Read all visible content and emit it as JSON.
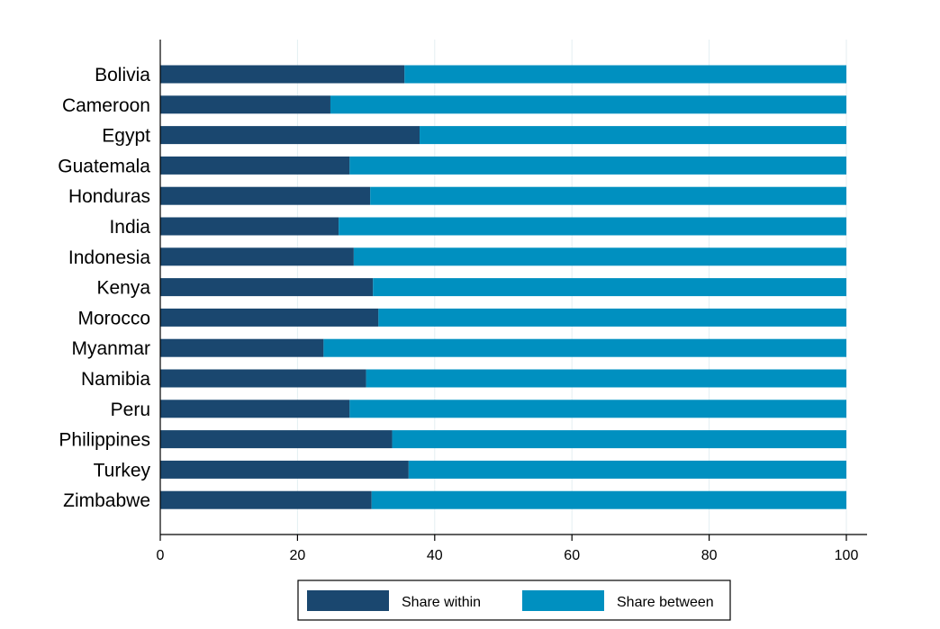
{
  "chart_data": {
    "type": "bar",
    "orientation": "horizontal",
    "stacked": true,
    "categories": [
      "Bolivia",
      "Cameroon",
      "Egypt",
      "Guatemala",
      "Honduras",
      "India",
      "Indonesia",
      "Kenya",
      "Morocco",
      "Myanmar",
      "Namibia",
      "Peru",
      "Philippines",
      "Turkey",
      "Zimbabwe"
    ],
    "series": [
      {
        "name": "Share within",
        "color": "#1a476f",
        "values": [
          35.6,
          24.8,
          37.8,
          27.6,
          30.6,
          26.0,
          28.2,
          31.0,
          31.8,
          23.8,
          30.0,
          27.6,
          33.8,
          36.2,
          30.8
        ]
      },
      {
        "name": "Share between",
        "color": "#0090c0",
        "values": [
          64.4,
          75.2,
          62.2,
          72.4,
          69.4,
          74.0,
          71.8,
          69.0,
          68.2,
          76.2,
          70.0,
          72.4,
          66.2,
          63.8,
          69.2
        ]
      }
    ],
    "xlim": [
      0,
      100
    ],
    "xticks": [
      "0",
      "20",
      "40",
      "60",
      "80",
      "100"
    ],
    "xlabel": "",
    "ylabel": "",
    "title": "",
    "grid": true,
    "legend_position": "bottom"
  }
}
